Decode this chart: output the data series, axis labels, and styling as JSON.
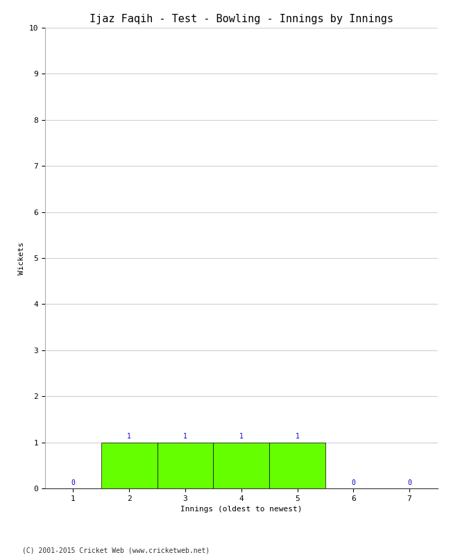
{
  "title": "Ijaz Faqih - Test - Bowling - Innings by Innings",
  "xlabel": "Innings (oldest to newest)",
  "ylabel": "Wickets",
  "innings": [
    1,
    2,
    3,
    4,
    5,
    6,
    7
  ],
  "wickets": [
    0,
    1,
    1,
    1,
    1,
    0,
    0
  ],
  "bar_color": "#66ff00",
  "bar_edge_color": "#000000",
  "label_color": "#0000cc",
  "ylim": [
    0,
    10
  ],
  "yticks": [
    0,
    1,
    2,
    3,
    4,
    5,
    6,
    7,
    8,
    9,
    10
  ],
  "xticks": [
    1,
    2,
    3,
    4,
    5,
    6,
    7
  ],
  "background_color": "#ffffff",
  "grid_color": "#d0d0d0",
  "title_fontsize": 11,
  "label_fontsize": 8,
  "tick_fontsize": 8,
  "annotation_fontsize": 7,
  "footer": "(C) 2001-2015 Cricket Web (www.cricketweb.net)",
  "footer_fontsize": 7
}
